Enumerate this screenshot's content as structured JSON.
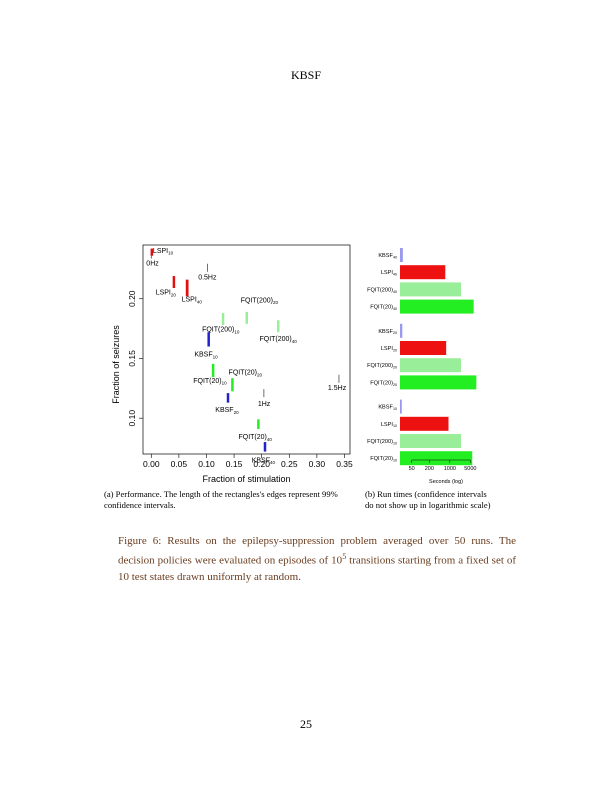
{
  "running_head": "KBSF",
  "page_number": "25",
  "subcaption_a": "(a) Performance. The length of the rectangles's edges represent 99% confidence intervals.",
  "subcaption_b": "(b) Run times (confidence intervals do not show up in logarithmic scale)",
  "caption": {
    "label": "Figure 6:",
    "text_pre": " Results on the epilepsy-suppression problem averaged over 50 runs. The decision policies were evaluated on episodes of 10",
    "sup": "5",
    "text_post": " transitions starting from a fixed set of 10 test states drawn uniformly at random."
  },
  "chart_data": [
    {
      "type": "scatter",
      "xlabel": "Fraction of stimulation",
      "ylabel": "Fraction of seizures",
      "xlim": [
        -0.015,
        0.36
      ],
      "ylim": [
        0.07,
        0.245
      ],
      "x_ticks": [
        "0.00",
        "0.05",
        "0.10",
        "0.15",
        "0.20",
        "0.25",
        "0.30",
        "0.35"
      ],
      "y_ticks": [
        "0.10",
        "0.15",
        "0.20"
      ],
      "points": [
        {
          "label": "LSPI",
          "sub": "10",
          "x": 0.001,
          "y": 0.239,
          "color": "#dd1111",
          "w": 0.002,
          "h": 0.006,
          "lx": 0.003,
          "ly": 0.2385
        },
        {
          "label": "LSPI",
          "sub": "20",
          "x": 0.041,
          "y": 0.214,
          "color": "#dd1111",
          "w": 0.004,
          "h": 0.01,
          "lx": 0.008,
          "ly": 0.2035
        },
        {
          "label": "LSPI",
          "sub": "40",
          "x": 0.065,
          "y": 0.209,
          "color": "#dd1111",
          "w": 0.005,
          "h": 0.014,
          "lx": 0.055,
          "ly": 0.1975
        },
        {
          "label": "FQIT(200)",
          "sub": "20",
          "x": 0.173,
          "y": 0.184,
          "color": "#99ee99",
          "w": 0.003,
          "h": 0.01,
          "lx": 0.162,
          "ly": 0.197
        },
        {
          "label": "FQIT(200)",
          "sub": "10",
          "x": 0.13,
          "y": 0.183,
          "color": "#99ee99",
          "w": 0.003,
          "h": 0.01,
          "lx": 0.092,
          "ly": 0.1725
        },
        {
          "label": "FQIT(200)",
          "sub": "40",
          "x": 0.23,
          "y": 0.177,
          "color": "#99ee99",
          "w": 0.003,
          "h": 0.01,
          "lx": 0.196,
          "ly": 0.1645
        },
        {
          "label": "KBSF",
          "sub": "10",
          "x": 0.104,
          "y": 0.166,
          "color": "#2222cc",
          "w": 0.004,
          "h": 0.012,
          "lx": 0.078,
          "ly": 0.1515
        },
        {
          "label": "FQIT(20)",
          "sub": "20",
          "x": 0.147,
          "y": 0.128,
          "color": "#22ee22",
          "w": 0.004,
          "h": 0.011,
          "lx": 0.14,
          "ly": 0.1365
        },
        {
          "label": "FQIT(20)",
          "sub": "10",
          "x": 0.112,
          "y": 0.14,
          "color": "#22ee22",
          "w": 0.004,
          "h": 0.011,
          "lx": 0.076,
          "ly": 0.1295
        },
        {
          "label": "KBSF",
          "sub": "20",
          "x": 0.139,
          "y": 0.117,
          "color": "#2222cc",
          "w": 0.004,
          "h": 0.008,
          "lx": 0.116,
          "ly": 0.105
        },
        {
          "label": "FQIT(20)",
          "sub": "40",
          "x": 0.194,
          "y": 0.095,
          "color": "#22ee22",
          "w": 0.003,
          "h": 0.008,
          "lx": 0.158,
          "ly": 0.0825
        },
        {
          "label": "KBSF",
          "sub": "40",
          "x": 0.206,
          "y": 0.076,
          "color": "#2222cc",
          "w": 0.003,
          "h": 0.008,
          "lx": 0.182,
          "ly": 0.063
        }
      ],
      "reference_points": [
        {
          "label": "0Hz",
          "x": 0.0,
          "y": 0.237,
          "lx": -0.009,
          "ly": 0.228
        },
        {
          "label": "0.5Hz",
          "x": 0.102,
          "y": 0.226,
          "lx": 0.085,
          "ly": 0.216
        },
        {
          "label": "1Hz",
          "x": 0.204,
          "y": 0.121,
          "lx": 0.193,
          "ly": 0.11
        },
        {
          "label": "1.5Hz",
          "x": 0.34,
          "y": 0.133,
          "lx": 0.32,
          "ly": 0.1235
        }
      ]
    },
    {
      "type": "bar",
      "orientation": "horizontal",
      "xlabel": "Seconds (log)",
      "x_scale": "log",
      "x_ticks": [
        "50",
        "200",
        "1000",
        "5000"
      ],
      "x_tick_values": [
        50,
        200,
        1000,
        5000
      ],
      "xlim": [
        20,
        20000
      ],
      "groups": [
        [
          {
            "label": "KBSF",
            "sub": "40",
            "value": 25,
            "color": "#9999ee"
          },
          {
            "label": "LSPI",
            "sub": "40",
            "value": 700,
            "color": "#ee1111"
          },
          {
            "label": "FQIT(200)",
            "sub": "40",
            "value": 2400,
            "color": "#99ee99"
          },
          {
            "label": "FQIT(20)",
            "sub": "40",
            "value": 6500,
            "color": "#22ee22"
          }
        ],
        [
          {
            "label": "KBSF",
            "sub": "20",
            "value": 24,
            "color": "#9999ee"
          },
          {
            "label": "LSPI",
            "sub": "20",
            "value": 750,
            "color": "#ee1111"
          },
          {
            "label": "FQIT(200)",
            "sub": "20",
            "value": 2400,
            "color": "#99ee99"
          },
          {
            "label": "FQIT(20)",
            "sub": "20",
            "value": 8000,
            "color": "#22ee22"
          }
        ],
        [
          {
            "label": "KBSF",
            "sub": "10",
            "value": 23,
            "color": "#9999ee"
          },
          {
            "label": "LSPI",
            "sub": "10",
            "value": 900,
            "color": "#ee1111"
          },
          {
            "label": "FQIT(200)",
            "sub": "10",
            "value": 2400,
            "color": "#99ee99"
          },
          {
            "label": "FQIT(20)",
            "sub": "10",
            "value": 5800,
            "color": "#22ee22"
          }
        ]
      ]
    }
  ]
}
